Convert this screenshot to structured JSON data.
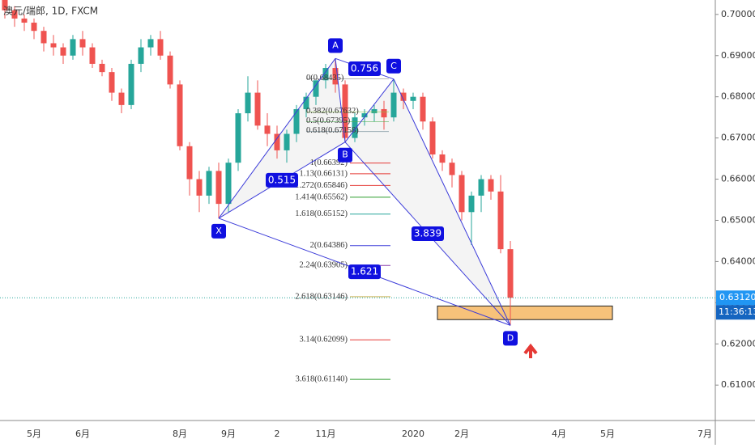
{
  "chart_data": {
    "type": "candlestick",
    "title": "澳元/瑞郎, 1D, FXCM",
    "categories": [
      null,
      null,
      null,
      "5月",
      null,
      null,
      null,
      null,
      "6月",
      null,
      null,
      null,
      null,
      null,
      null,
      null,
      null,
      null,
      "8月",
      null,
      null,
      null,
      null,
      "9月",
      null,
      null,
      null,
      null,
      "2",
      null,
      null,
      null,
      null,
      "11月",
      null,
      null,
      null,
      null,
      null,
      null,
      null,
      null,
      "2020",
      null,
      null,
      null,
      null,
      "2月",
      null,
      null,
      null,
      null,
      null,
      null,
      null,
      null,
      null,
      "4月",
      null,
      null,
      null,
      null,
      "5月",
      null,
      null,
      null,
      null,
      null,
      null,
      null,
      null,
      null,
      "7月"
    ],
    "open": [
      0.7035,
      0.701,
      0.699,
      0.698,
      0.696,
      0.693,
      0.692,
      0.69,
      0.694,
      0.692,
      0.688,
      0.686,
      0.681,
      0.678,
      0.688,
      0.692,
      0.694,
      0.69,
      0.683,
      0.668,
      0.66,
      0.656,
      0.662,
      0.654,
      0.664,
      0.676,
      0.681,
      0.673,
      0.671,
      0.667,
      0.671,
      0.677,
      0.68,
      0.684,
      0.687,
      0.683,
      0.67,
      0.675,
      0.676,
      0.677,
      0.675,
      0.681,
      0.679,
      0.68,
      0.674,
      0.666,
      0.664,
      0.661,
      0.652,
      0.656,
      0.66,
      0.657,
      0.643,
      null,
      null,
      null,
      null,
      null,
      null,
      null,
      null,
      null,
      null,
      null,
      null,
      null,
      null,
      null,
      null,
      null,
      null,
      null,
      null
    ],
    "high": [
      0.7035,
      0.702,
      0.7,
      0.699,
      0.697,
      0.695,
      0.693,
      0.695,
      0.696,
      0.693,
      0.689,
      0.687,
      0.682,
      0.689,
      0.694,
      0.695,
      0.696,
      0.691,
      0.684,
      0.669,
      0.662,
      0.663,
      0.664,
      0.665,
      0.677,
      0.685,
      0.684,
      0.676,
      0.673,
      0.672,
      0.678,
      0.681,
      0.684,
      0.688,
      0.6893,
      0.684,
      0.676,
      0.677,
      0.678,
      0.679,
      0.6843,
      0.682,
      0.681,
      0.681,
      0.675,
      0.667,
      0.665,
      0.662,
      0.657,
      0.661,
      0.661,
      0.661,
      0.645,
      null,
      null,
      null,
      null,
      null,
      null,
      null,
      null,
      null,
      null,
      null,
      null,
      null,
      null,
      null,
      null,
      null,
      null,
      null,
      null
    ],
    "low": [
      0.699,
      0.697,
      0.696,
      0.694,
      0.691,
      0.69,
      0.688,
      0.689,
      0.69,
      0.687,
      0.685,
      0.679,
      0.676,
      0.677,
      0.686,
      0.69,
      0.689,
      0.682,
      0.667,
      0.656,
      0.652,
      0.654,
      0.6505,
      0.652,
      0.662,
      0.674,
      0.672,
      0.668,
      0.665,
      0.664,
      0.669,
      0.675,
      0.678,
      0.682,
      0.681,
      0.669,
      0.669,
      0.673,
      0.674,
      0.672,
      0.674,
      0.677,
      0.677,
      0.672,
      0.665,
      0.662,
      0.658,
      0.65,
      0.644,
      0.652,
      0.655,
      0.642,
      0.6245,
      null,
      null,
      null,
      null,
      null,
      null,
      null,
      null,
      null,
      null,
      null,
      null,
      null,
      null,
      null,
      null,
      null,
      null,
      null,
      null
    ],
    "close": [
      0.701,
      0.699,
      0.698,
      0.696,
      0.693,
      0.692,
      0.69,
      0.694,
      0.692,
      0.688,
      0.686,
      0.681,
      0.678,
      0.688,
      0.692,
      0.694,
      0.69,
      0.683,
      0.668,
      0.66,
      0.656,
      0.662,
      0.654,
      0.664,
      0.676,
      0.681,
      0.673,
      0.671,
      0.667,
      0.671,
      0.677,
      0.68,
      0.684,
      0.687,
      0.683,
      0.67,
      0.675,
      0.676,
      0.677,
      0.675,
      0.681,
      0.679,
      0.68,
      0.674,
      0.666,
      0.664,
      0.661,
      0.652,
      0.656,
      0.66,
      0.657,
      0.643,
      0.6312,
      null,
      null,
      null,
      null,
      null,
      null,
      null,
      null,
      null,
      null,
      null,
      null,
      null,
      null,
      null,
      null,
      null,
      null,
      null,
      null
    ],
    "up_color": "#26a69a",
    "down_color": "#ef5350",
    "ylim": [
      0.6014,
      0.7035
    ],
    "yticks": [
      {
        "value": 0.61,
        "label": "0.61000"
      },
      {
        "value": 0.62,
        "label": "0.62000"
      },
      {
        "value": 0.63,
        "label": "0.63000"
      },
      {
        "value": 0.64,
        "label": "0.64000"
      },
      {
        "value": 0.65,
        "label": "0.65000"
      },
      {
        "value": 0.66,
        "label": "0.66000"
      },
      {
        "value": 0.67,
        "label": "0.67000"
      },
      {
        "value": 0.68,
        "label": "0.68000"
      },
      {
        "value": 0.69,
        "label": "0.69000"
      },
      {
        "value": 0.7,
        "label": "0.70000"
      }
    ],
    "grid": false,
    "pattern": {
      "color": "#3b3bd9",
      "points": [
        {
          "label": "X",
          "x": 22,
          "price": 0.6505
        },
        {
          "label": "A",
          "x": 34,
          "price": 0.6893
        },
        {
          "label": "B",
          "x": 35,
          "price": 0.669
        },
        {
          "label": "C",
          "x": 40,
          "price": 0.6843
        },
        {
          "label": "D",
          "x": 52,
          "price": 0.6245
        }
      ],
      "ratios": [
        {
          "text": "0.515",
          "from": 0,
          "to": 2
        },
        {
          "text": "0.756",
          "from": 1,
          "to": 3
        },
        {
          "text": "3.839",
          "from": 2,
          "to": 4
        },
        {
          "text": "1.621",
          "from": 0,
          "to": 4
        }
      ]
    },
    "fib_upper": [
      {
        "label": "0(0.68435)",
        "value": 0.68435,
        "color": "#888888"
      },
      {
        "label": "0.382(0.67632)",
        "value": 0.67632,
        "color": "#8bc34a"
      },
      {
        "label": "0.5(0.67395)",
        "value": 0.67395,
        "color": "#4caf50"
      },
      {
        "label": "0.618(0.67158)",
        "value": 0.67158,
        "color": "#607d8b"
      }
    ],
    "fib_lower": [
      {
        "label": "1(0.66392)",
        "value": 0.66392,
        "color": "#e53935"
      },
      {
        "label": "1.13(0.66131)",
        "value": 0.66131,
        "color": "#e53935"
      },
      {
        "label": "1.272(0.65846)",
        "value": 0.65846,
        "color": "#e53935"
      },
      {
        "label": "1.414(0.65562)",
        "value": 0.65562,
        "color": "#2e9e2e"
      },
      {
        "label": "1.618(0.65152)",
        "value": 0.65152,
        "color": "#26a69a"
      },
      {
        "label": "2(0.64386)",
        "value": 0.64386,
        "color": "#3b3bd9"
      },
      {
        "label": "2.24(0.63905)",
        "value": 0.63905,
        "color": "#8e44ad"
      },
      {
        "label": "2.618(0.63146)",
        "value": 0.63146,
        "color": "#c9b458"
      },
      {
        "label": "3.14(0.62099)",
        "value": 0.62099,
        "color": "#e53935"
      },
      {
        "label": "3.618(0.61140)",
        "value": 0.6114,
        "color": "#2e9e2e"
      }
    ],
    "zone": {
      "x_from": 45,
      "x_to": 63,
      "low": 0.6259,
      "high": 0.6292,
      "color": "#f7c27a"
    },
    "last_price": {
      "value": 0.6312,
      "label": "0.63120",
      "time": "11:36:13",
      "color": "#2196f3"
    }
  }
}
